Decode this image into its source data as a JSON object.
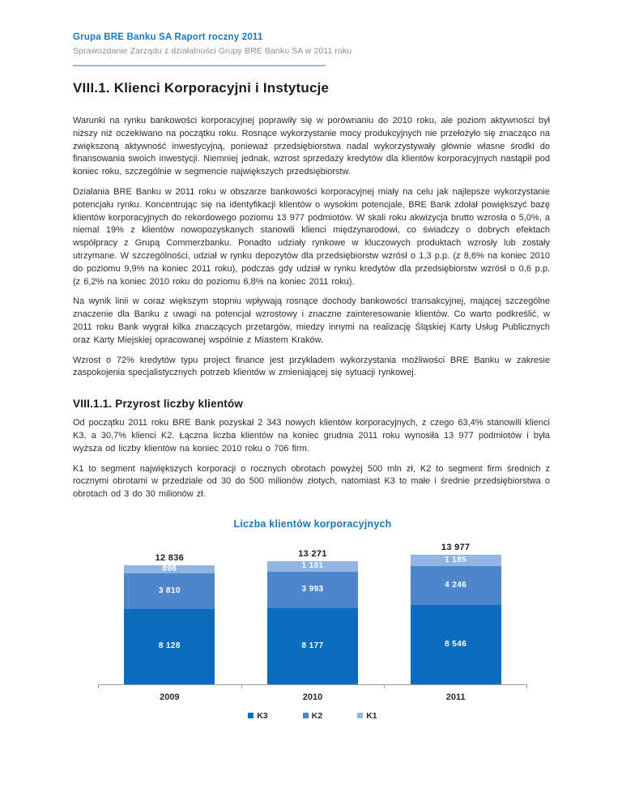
{
  "header": {
    "title": "Grupa BRE Banku SA Raport roczny 2011",
    "subtitle": "Sprawozdanie Zarządu z działalności Grupy BRE Banku SA w 2011 roku"
  },
  "section": {
    "title": "VIII.1. Klienci Korporacyjni i Instytucje",
    "paragraphs": [
      "Warunki na rynku bankowości korporacyjnej poprawiły się w porównaniu do 2010 roku, ale poziom aktywności był niższy niż oczekiwano na początku roku. Rosnące wykorzystanie mocy produkcyjnych nie przełożyło się znacząco na zwiększoną aktywność inwestycyjną, ponieważ przedsiębiorstwa nadal wykorzystywały głównie własne środki do finansowania swoich inwestycji. Niemniej jednak, wzrost sprzedaży kredytów dla klientów korporacyjnych nastąpił pod koniec roku, szczególnie w segmencie największych przedsiębiorstw.",
      "Działania BRE Banku w 2011 roku w obszarze bankowości korporacyjnej miały na celu jak najlepsze wykorzystanie potencjału rynku. Koncentrując się na identyfikacji klientów o wysokim potencjale, BRE Bank zdołał powiększyć bazę klientów korporacyjnych do rekordowego poziomu 13 977 podmiotów. W skali roku akwizycja brutto wzrosła o 5,0%, a niemal 19% z klientów nowopozyskanych stanowili klienci międzynarodowi, co świadczy o dobrych efektach współpracy z Grupą Commerzbanku. Ponadto udziały rynkowe w kluczowych produktach wzrosły lub zostały utrzymane. W szczególności, udział w rynku depozytów dla przedsiębiorstw wzrósł o 1,3 p.p. (z 8,6% na koniec 2010 do poziomu 9,9% na koniec 2011 roku), podczas gdy udział w rynku kredytów dla przedsiębiorstw wzrósł o 0,6 p.p. (z 6,2% na koniec 2010 roku do poziomu 6,8% na koniec 2011 roku).",
      "Na wynik linii w coraz większym stopniu wpływają rosnące dochody bankowości transakcyjnej, mającej szczególne znaczenie dla Banku z uwagi na potencjał wzrostowy i znaczne zainteresowanie klientów. Co warto podkreślić, w 2011 roku Bank wygrał kilka znaczących przetargów, miedzy innymi na realizację Śląskiej Karty Usług Publicznych oraz Karty Miejskiej opracowanej wspólnie z Miastem Kraków.",
      "Wzrost o 72% kredytów typu project finance jest przykładem wykorzystania możliwości BRE Banku w zakresie zaspokojenia specjalistycznych potrzeb klientów w zmieniającej się sytuacji rynkowej."
    ]
  },
  "subsection": {
    "title": "VIII.1.1. Przyrost liczby klientów",
    "paragraphs": [
      "Od początku 2011 roku BRE Bank pozyskał 2 343 nowych klientów korporacyjnych, z czego 63,4% stanowili klienci K3, a 30,7% klienci K2. Łączna liczba klientów na koniec grudnia 2011 roku wynosiła 13 977 podmiotów i była wyższa od liczby klientów na koniec 2010 roku o 706 firm.",
      "K1 to segment największych korporacji o rocznych obrotach powyżej 500 mln zł, K2 to segment firm średnich z rocznymi obrotami w przedziale od 30 do 500 milionów złotych, natomiast K3 to małe i średnie przedsiębiorstwa o obrotach od 3 do 30 milionów zł."
    ]
  },
  "chart_data": {
    "type": "bar",
    "stacked": true,
    "title": "Liczba klientów korporacyjnych",
    "categories": [
      "2009",
      "2010",
      "2011"
    ],
    "series": [
      {
        "name": "K3",
        "color": "#0b6dbd",
        "values": [
          8128,
          8177,
          8546
        ],
        "labels": [
          "8 128",
          "8 177",
          "8 546"
        ]
      },
      {
        "name": "K2",
        "color": "#4e86cb",
        "values": [
          3810,
          3993,
          4246
        ],
        "labels": [
          "3 810",
          "3 993",
          "4 246"
        ]
      },
      {
        "name": "K1",
        "color": "#91b5e2",
        "values": [
          898,
          1101,
          1185
        ],
        "labels": [
          "898",
          "1 101",
          "1 185"
        ]
      }
    ],
    "totals": [
      12836,
      13271,
      13977
    ],
    "total_labels": [
      "12 836",
      "13 271",
      "13 977"
    ],
    "legend": [
      "K3",
      "K2",
      "K1"
    ],
    "legend_position": "bottom",
    "grid": false,
    "axis_color": "#9d9d9d"
  }
}
